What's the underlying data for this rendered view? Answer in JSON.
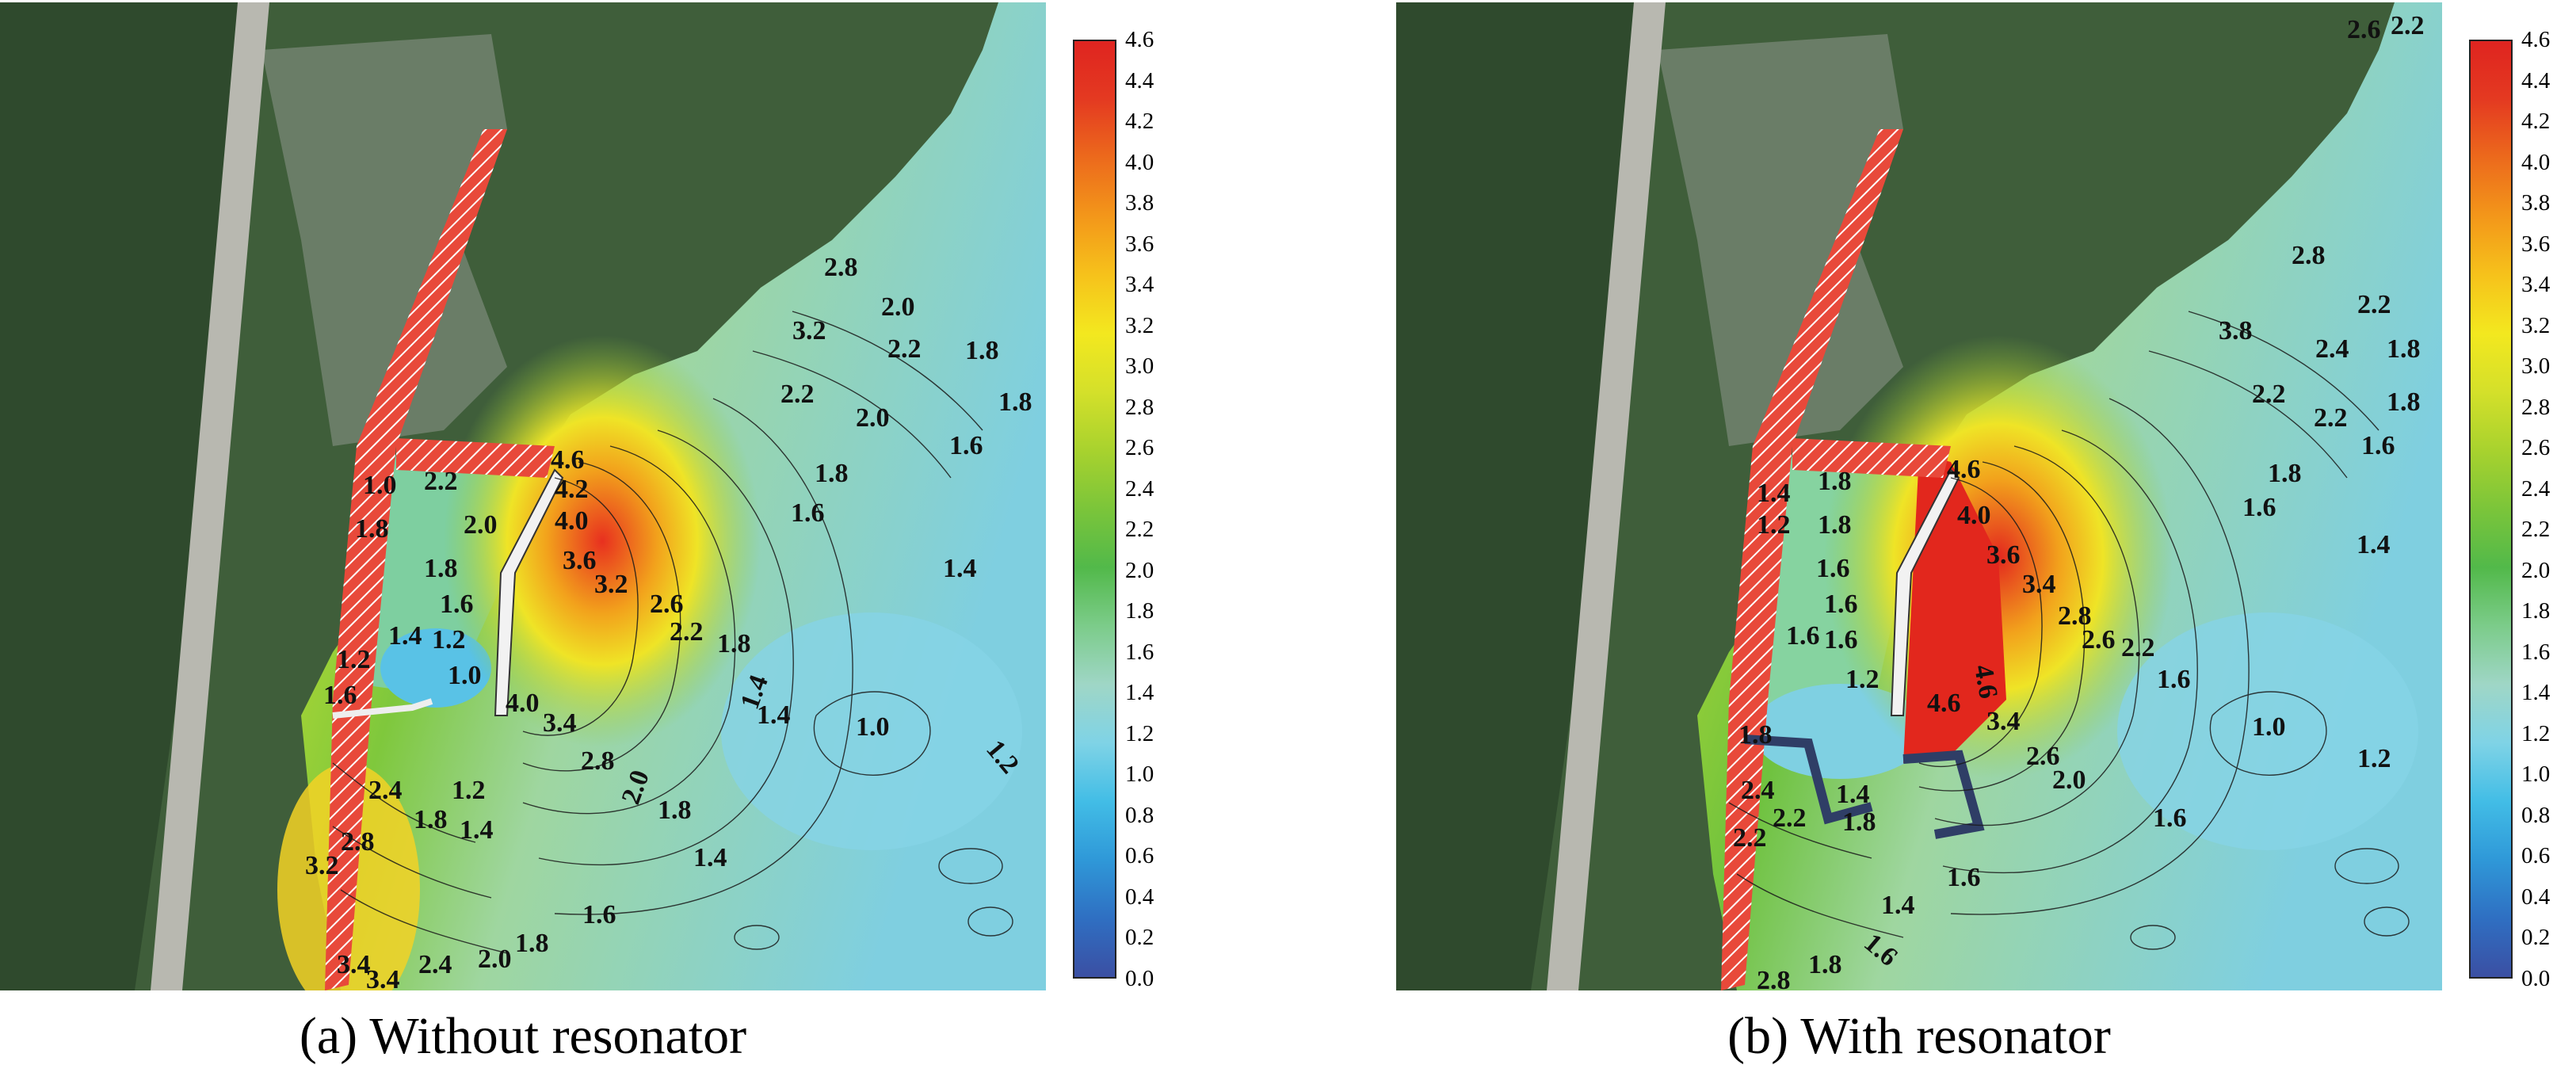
{
  "figure": {
    "panels": [
      {
        "caption": "(a)  Without  resonator",
        "contour_labels": [
          "4.6",
          "4.2",
          "4.0",
          "3.6",
          "3.2",
          "2.6",
          "2.2",
          "1.8",
          "1.4",
          "1.0",
          "2.2",
          "2.0",
          "1.8",
          "1.6",
          "1.4",
          "1.2",
          "1.0",
          "1.2",
          "1.6",
          "1.0",
          "1.8",
          "4.0",
          "3.4",
          "2.8",
          "2.0",
          "1.8",
          "1.4",
          "2.4",
          "1.8",
          "1.2",
          "1.4",
          "2.8",
          "3.2",
          "1.6",
          "1.8",
          "2.4",
          "2.0",
          "3.4",
          "3.4",
          "2.8",
          "2.0",
          "2.2",
          "1.8",
          "3.2",
          "2.2",
          "2.0",
          "1.8",
          "1.6",
          "1.8",
          "1.6",
          "1.4",
          "1.2",
          "1.4"
        ]
      },
      {
        "caption": "(b)  With  resonator",
        "contour_labels": [
          "4.6",
          "4.0",
          "3.6",
          "3.4",
          "2.8",
          "2.6",
          "2.2",
          "1.6",
          "1.0",
          "1.2",
          "1.8",
          "1.8",
          "1.6",
          "1.6",
          "1.6",
          "1.4",
          "1.2",
          "1.6",
          "1.2",
          "1.8",
          "4.6",
          "4.6",
          "3.4",
          "2.6",
          "2.0",
          "1.6",
          "2.4",
          "2.2",
          "2.2",
          "1.4",
          "1.8",
          "1.6",
          "1.4",
          "1.6",
          "1.8",
          "2.8",
          "2.8",
          "2.2",
          "2.4",
          "1.8",
          "3.8",
          "2.2",
          "2.2",
          "1.8",
          "1.6",
          "1.8",
          "1.6",
          "1.4",
          "2.6",
          "2.2"
        ]
      }
    ],
    "colorbar": {
      "ticks": [
        "4.6",
        "4.4",
        "4.2",
        "4.0",
        "3.8",
        "3.6",
        "3.4",
        "3.2",
        "3.0",
        "2.8",
        "2.6",
        "2.4",
        "2.2",
        "2.0",
        "1.8",
        "1.6",
        "1.4",
        "1.2",
        "1.0",
        "0.8",
        "0.6",
        "0.4",
        "0.2",
        "0.0"
      ],
      "range": [
        0.0,
        4.6
      ],
      "colors": [
        "#3b4fa3",
        "#2f6fc2",
        "#2f98d8",
        "#42bde6",
        "#7fd3e6",
        "#9fd6c6",
        "#7ccc8a",
        "#52b94a",
        "#7bc53a",
        "#a8d22e",
        "#d4e02a",
        "#f3e81f",
        "#f6c21b",
        "#f3971a",
        "#ec6a1c",
        "#e43a21",
        "#df2420"
      ]
    }
  }
}
